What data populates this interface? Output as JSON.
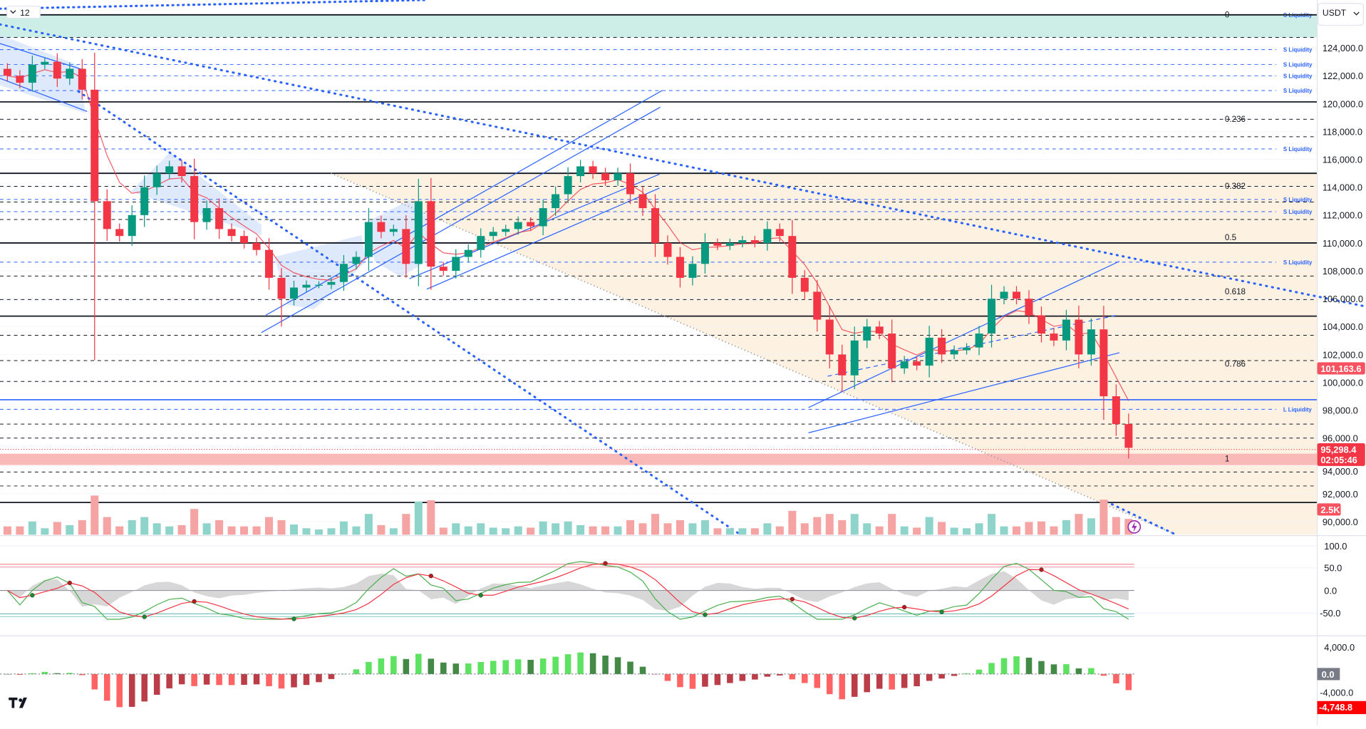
{
  "toolbar": {
    "interval_label": "12",
    "currency": "USDT"
  },
  "price_axis": {
    "ticks": [
      "124,000.0",
      "122,000.0",
      "120,000.0",
      "118,000.0",
      "116,000.0",
      "114,000.0",
      "112,000.0",
      "110,000.0",
      "108,000.0",
      "106,000.0",
      "104,000.0",
      "102,000.0",
      "100,000.0",
      "98,000.0",
      "96,000.0",
      "94,000.0",
      "92,000.0",
      "90,000.0"
    ],
    "tick_values": [
      124000,
      122000,
      120000,
      118000,
      116000,
      114000,
      112000,
      110000,
      108000,
      106000,
      104000,
      102000,
      100000,
      98000,
      96000,
      94000,
      92000,
      90000
    ]
  },
  "badges": {
    "ema_value": "101,163.6",
    "last_price": "95,298.4",
    "countdown": "02:05:46",
    "volume": "2.5K",
    "macd_zero": "0.0",
    "macd_value": "-4,748.8"
  },
  "colors": {
    "up": "#089981",
    "down": "#f23645",
    "accent": "#2962ff",
    "zone_top": "#cdeee6",
    "zone_peach": "#fdf1e2",
    "zone_red": "#f9b9b7"
  },
  "levels": {
    "solid_black": [
      126375,
      120125,
      115000,
      110000,
      104750,
      91375
    ],
    "dashed_black": [
      124750,
      118875,
      117625,
      114062,
      112937,
      111687,
      107625,
      105937,
      103375,
      101562,
      100062,
      97000,
      96000,
      93562,
      92562
    ],
    "solid_blue": [
      98750
    ],
    "liquidity": [
      {
        "label": "S Liquidity",
        "price": 126375
      },
      {
        "label": "S Liquidity",
        "price": 123875
      },
      {
        "label": "S Liquidity",
        "price": 122812
      },
      {
        "label": "S Liquidity",
        "price": 122000
      },
      {
        "label": "S Liquidity",
        "price": 120937
      },
      {
        "label": "S Liquidity",
        "price": 116750
      },
      {
        "label": "S Liquidity",
        "price": 113125
      },
      {
        "label": "S Liquidity",
        "price": 112250
      },
      {
        "label": "S Liquidity",
        "price": 108625
      },
      {
        "label": "L Liquidity",
        "price": 98062
      }
    ],
    "fib": [
      {
        "label": "0",
        "price": 126375
      },
      {
        "label": "0.236",
        "price": 118875
      },
      {
        "label": "0.382",
        "price": 114062
      },
      {
        "label": "0.5",
        "price": 110400
      },
      {
        "label": "0.618",
        "price": 106500
      },
      {
        "label": "0.786",
        "price": 101300
      },
      {
        "label": "1",
        "price": 94500
      }
    ]
  },
  "oscillator_axis": [
    "100.0",
    "50.0",
    "0.0",
    "-50.0"
  ],
  "macd_axis": [
    "4,000.0",
    "-4,000.0"
  ],
  "chart_data": {
    "type": "candlestick",
    "symbol_quote": "USDT",
    "open_first": 122500,
    "closes": [
      122000,
      121500,
      122800,
      123000,
      121800,
      122500,
      121000,
      113000,
      111000,
      110500,
      112000,
      114000,
      115000,
      115500,
      114800,
      111500,
      112500,
      111000,
      110500,
      110000,
      109500,
      107500,
      106000,
      106800,
      107000,
      107000,
      107200,
      108500,
      109000,
      111500,
      110800,
      111000,
      108500,
      113000,
      108300,
      108000,
      109000,
      109500,
      110500,
      110800,
      111000,
      111500,
      111200,
      112500,
      113500,
      114800,
      115500,
      115000,
      114500,
      115000,
      113500,
      112500,
      110000,
      109000,
      107500,
      108500,
      110000,
      109800,
      110000,
      110200,
      110000,
      111000,
      110500,
      107500,
      106500,
      104500,
      102000,
      100500,
      103000,
      104000,
      103500,
      101000,
      101500,
      101200,
      103200,
      102000,
      102300,
      102500,
      103500,
      106000,
      106500,
      106000,
      104800,
      103500,
      103000,
      104500,
      102000,
      103800,
      99000,
      97000,
      95298.4
    ],
    "low_overrides": {
      "7": 101600,
      "22": 104000,
      "67": 99300
    },
    "ylim": [
      89500,
      127000
    ],
    "last_volume": "2.5K"
  }
}
